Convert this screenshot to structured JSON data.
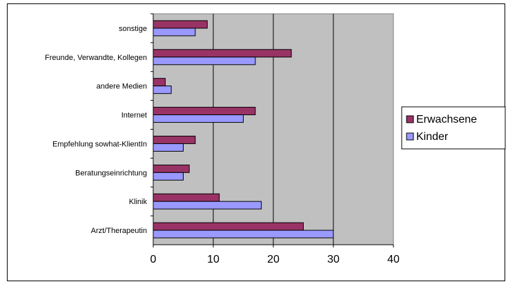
{
  "chart_data": {
    "type": "bar",
    "orientation": "horizontal",
    "categories": [
      "Arzt/Therapeutin",
      "Klinik",
      "Beratungseinrichtung",
      "Empfehlung sowhat-KlientIn",
      "Internet",
      "andere Medien",
      "Freunde, Verwandte, Kollegen",
      "sonstige"
    ],
    "series": [
      {
        "name": "Erwachsene",
        "color": "#993366",
        "values": [
          25,
          11,
          6,
          7,
          17,
          2,
          23,
          9
        ]
      },
      {
        "name": "Kinder",
        "color": "#9999FF",
        "values": [
          30,
          18,
          5,
          5,
          15,
          3,
          17,
          7
        ]
      }
    ],
    "xlim": [
      0,
      40
    ],
    "xticks": [
      "0",
      "10",
      "20",
      "30",
      "40"
    ],
    "grid": "vertical",
    "plot_background": "#C0C0C0",
    "legend_position": "right",
    "title": "",
    "xlabel": "",
    "ylabel": ""
  }
}
